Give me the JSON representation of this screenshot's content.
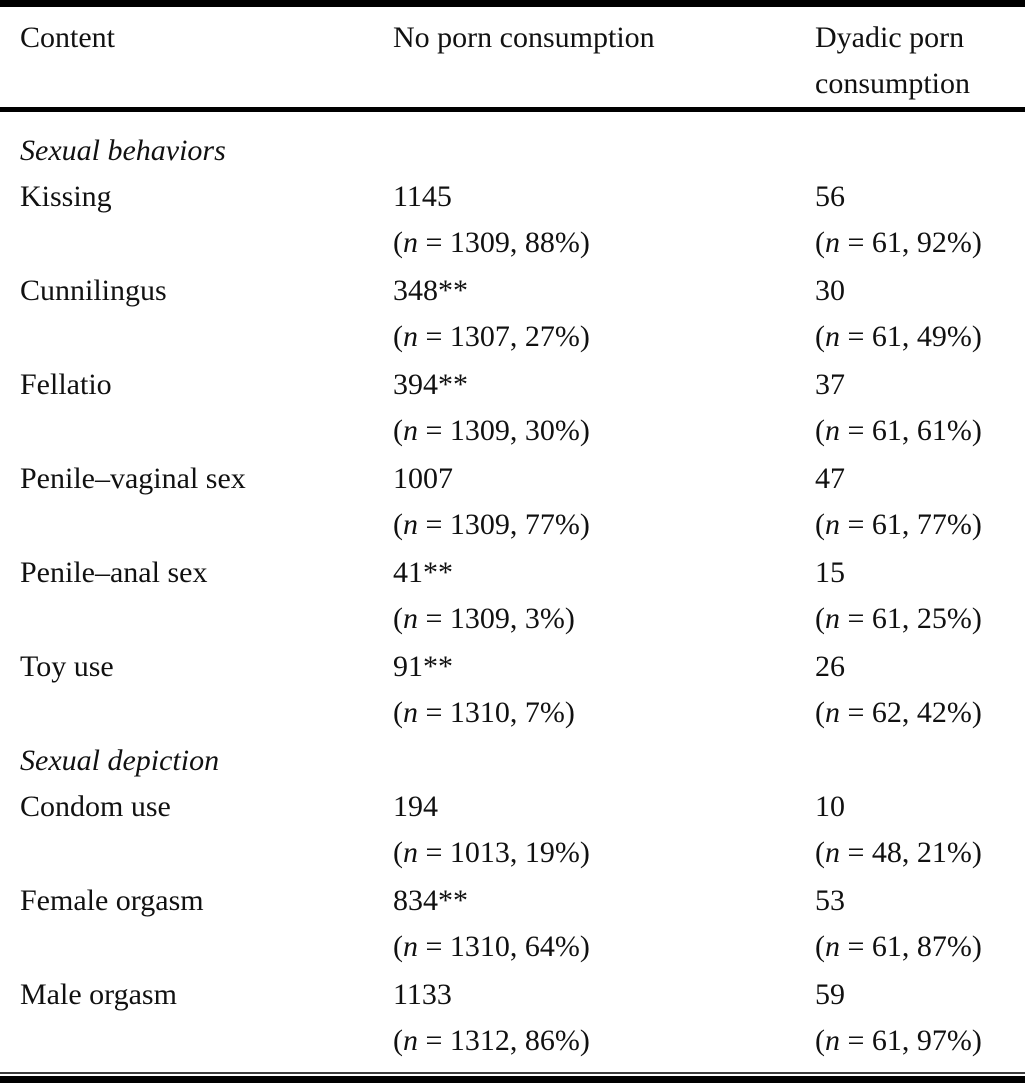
{
  "table": {
    "header": {
      "columns": [
        "Content",
        "No porn consumption",
        "Dyadic porn consumption"
      ]
    },
    "sections": [
      {
        "label": "Sexual behaviors",
        "rows": [
          {
            "content": "Kissing",
            "no_porn": {
              "value": "1145",
              "detail": "(n = 1309, 88%)"
            },
            "dyadic_porn": {
              "value": "56",
              "detail": "(n = 61, 92%)"
            }
          },
          {
            "content": "Cunnilingus",
            "no_porn": {
              "value": "348**",
              "detail": "(n = 1307, 27%)"
            },
            "dyadic_porn": {
              "value": "30",
              "detail": "(n = 61, 49%)"
            }
          },
          {
            "content": "Fellatio",
            "no_porn": {
              "value": "394**",
              "detail": "(n = 1309, 30%)"
            },
            "dyadic_porn": {
              "value": "37",
              "detail": "(n = 61, 61%)"
            }
          },
          {
            "content": "Penile–vaginal sex",
            "no_porn": {
              "value": "1007",
              "detail": "(n = 1309, 77%)"
            },
            "dyadic_porn": {
              "value": "47",
              "detail": "(n = 61, 77%)"
            }
          },
          {
            "content": "Penile–anal sex",
            "no_porn": {
              "value": "41**",
              "detail": "(n = 1309, 3%)"
            },
            "dyadic_porn": {
              "value": "15",
              "detail": "(n = 61, 25%)"
            }
          },
          {
            "content": "Toy use",
            "no_porn": {
              "value": "91**",
              "detail": "(n = 1310, 7%)"
            },
            "dyadic_porn": {
              "value": "26",
              "detail": "(n = 62, 42%)"
            }
          }
        ]
      },
      {
        "label": "Sexual depiction",
        "rows": [
          {
            "content": "Condom use",
            "no_porn": {
              "value": "194",
              "detail": "(n = 1013, 19%)"
            },
            "dyadic_porn": {
              "value": "10",
              "detail": "(n = 48, 21%)"
            }
          },
          {
            "content": "Female orgasm",
            "no_porn": {
              "value": "834**",
              "detail": "(n = 1310, 64%)"
            },
            "dyadic_porn": {
              "value": "53",
              "detail": "(n = 61, 87%)"
            }
          },
          {
            "content": "Male orgasm",
            "no_porn": {
              "value": "1133",
              "detail": "(n = 1312, 86%)"
            },
            "dyadic_porn": {
              "value": "59",
              "detail": "(n = 61, 97%)"
            }
          }
        ]
      }
    ]
  },
  "chart_data": {
    "type": "table",
    "columns": [
      "Content",
      "No porn consumption",
      "Dyadic porn consumption"
    ],
    "rows": [
      [
        "Sexual behaviors",
        "",
        ""
      ],
      [
        "Kissing",
        "1145 (n = 1309, 88%)",
        "56 (n = 61, 92%)"
      ],
      [
        "Cunnilingus",
        "348** (n = 1307, 27%)",
        "30 (n = 61, 49%)"
      ],
      [
        "Fellatio",
        "394** (n = 1309, 30%)",
        "37 (n = 61, 61%)"
      ],
      [
        "Penile–vaginal sex",
        "1007 (n = 1309, 77%)",
        "47 (n = 61, 77%)"
      ],
      [
        "Penile–anal sex",
        "41** (n = 1309, 3%)",
        "15 (n = 61, 25%)"
      ],
      [
        "Toy use",
        "91** (n = 1310, 7%)",
        "26 (n = 62, 42%)"
      ],
      [
        "Sexual depiction",
        "",
        ""
      ],
      [
        "Condom use",
        "194 (n = 1013, 19%)",
        "10 (n = 48, 21%)"
      ],
      [
        "Female orgasm",
        "834** (n = 1310, 64%)",
        "53 (n = 61, 87%)"
      ],
      [
        "Male orgasm",
        "1133 (n = 1312, 86%)",
        "59 (n = 61, 97%)"
      ]
    ],
    "notes": {
      "significance_marker": "**",
      "colors": {
        "text": "#111111",
        "rules": "#000000",
        "background": "#ffffff"
      }
    }
  }
}
